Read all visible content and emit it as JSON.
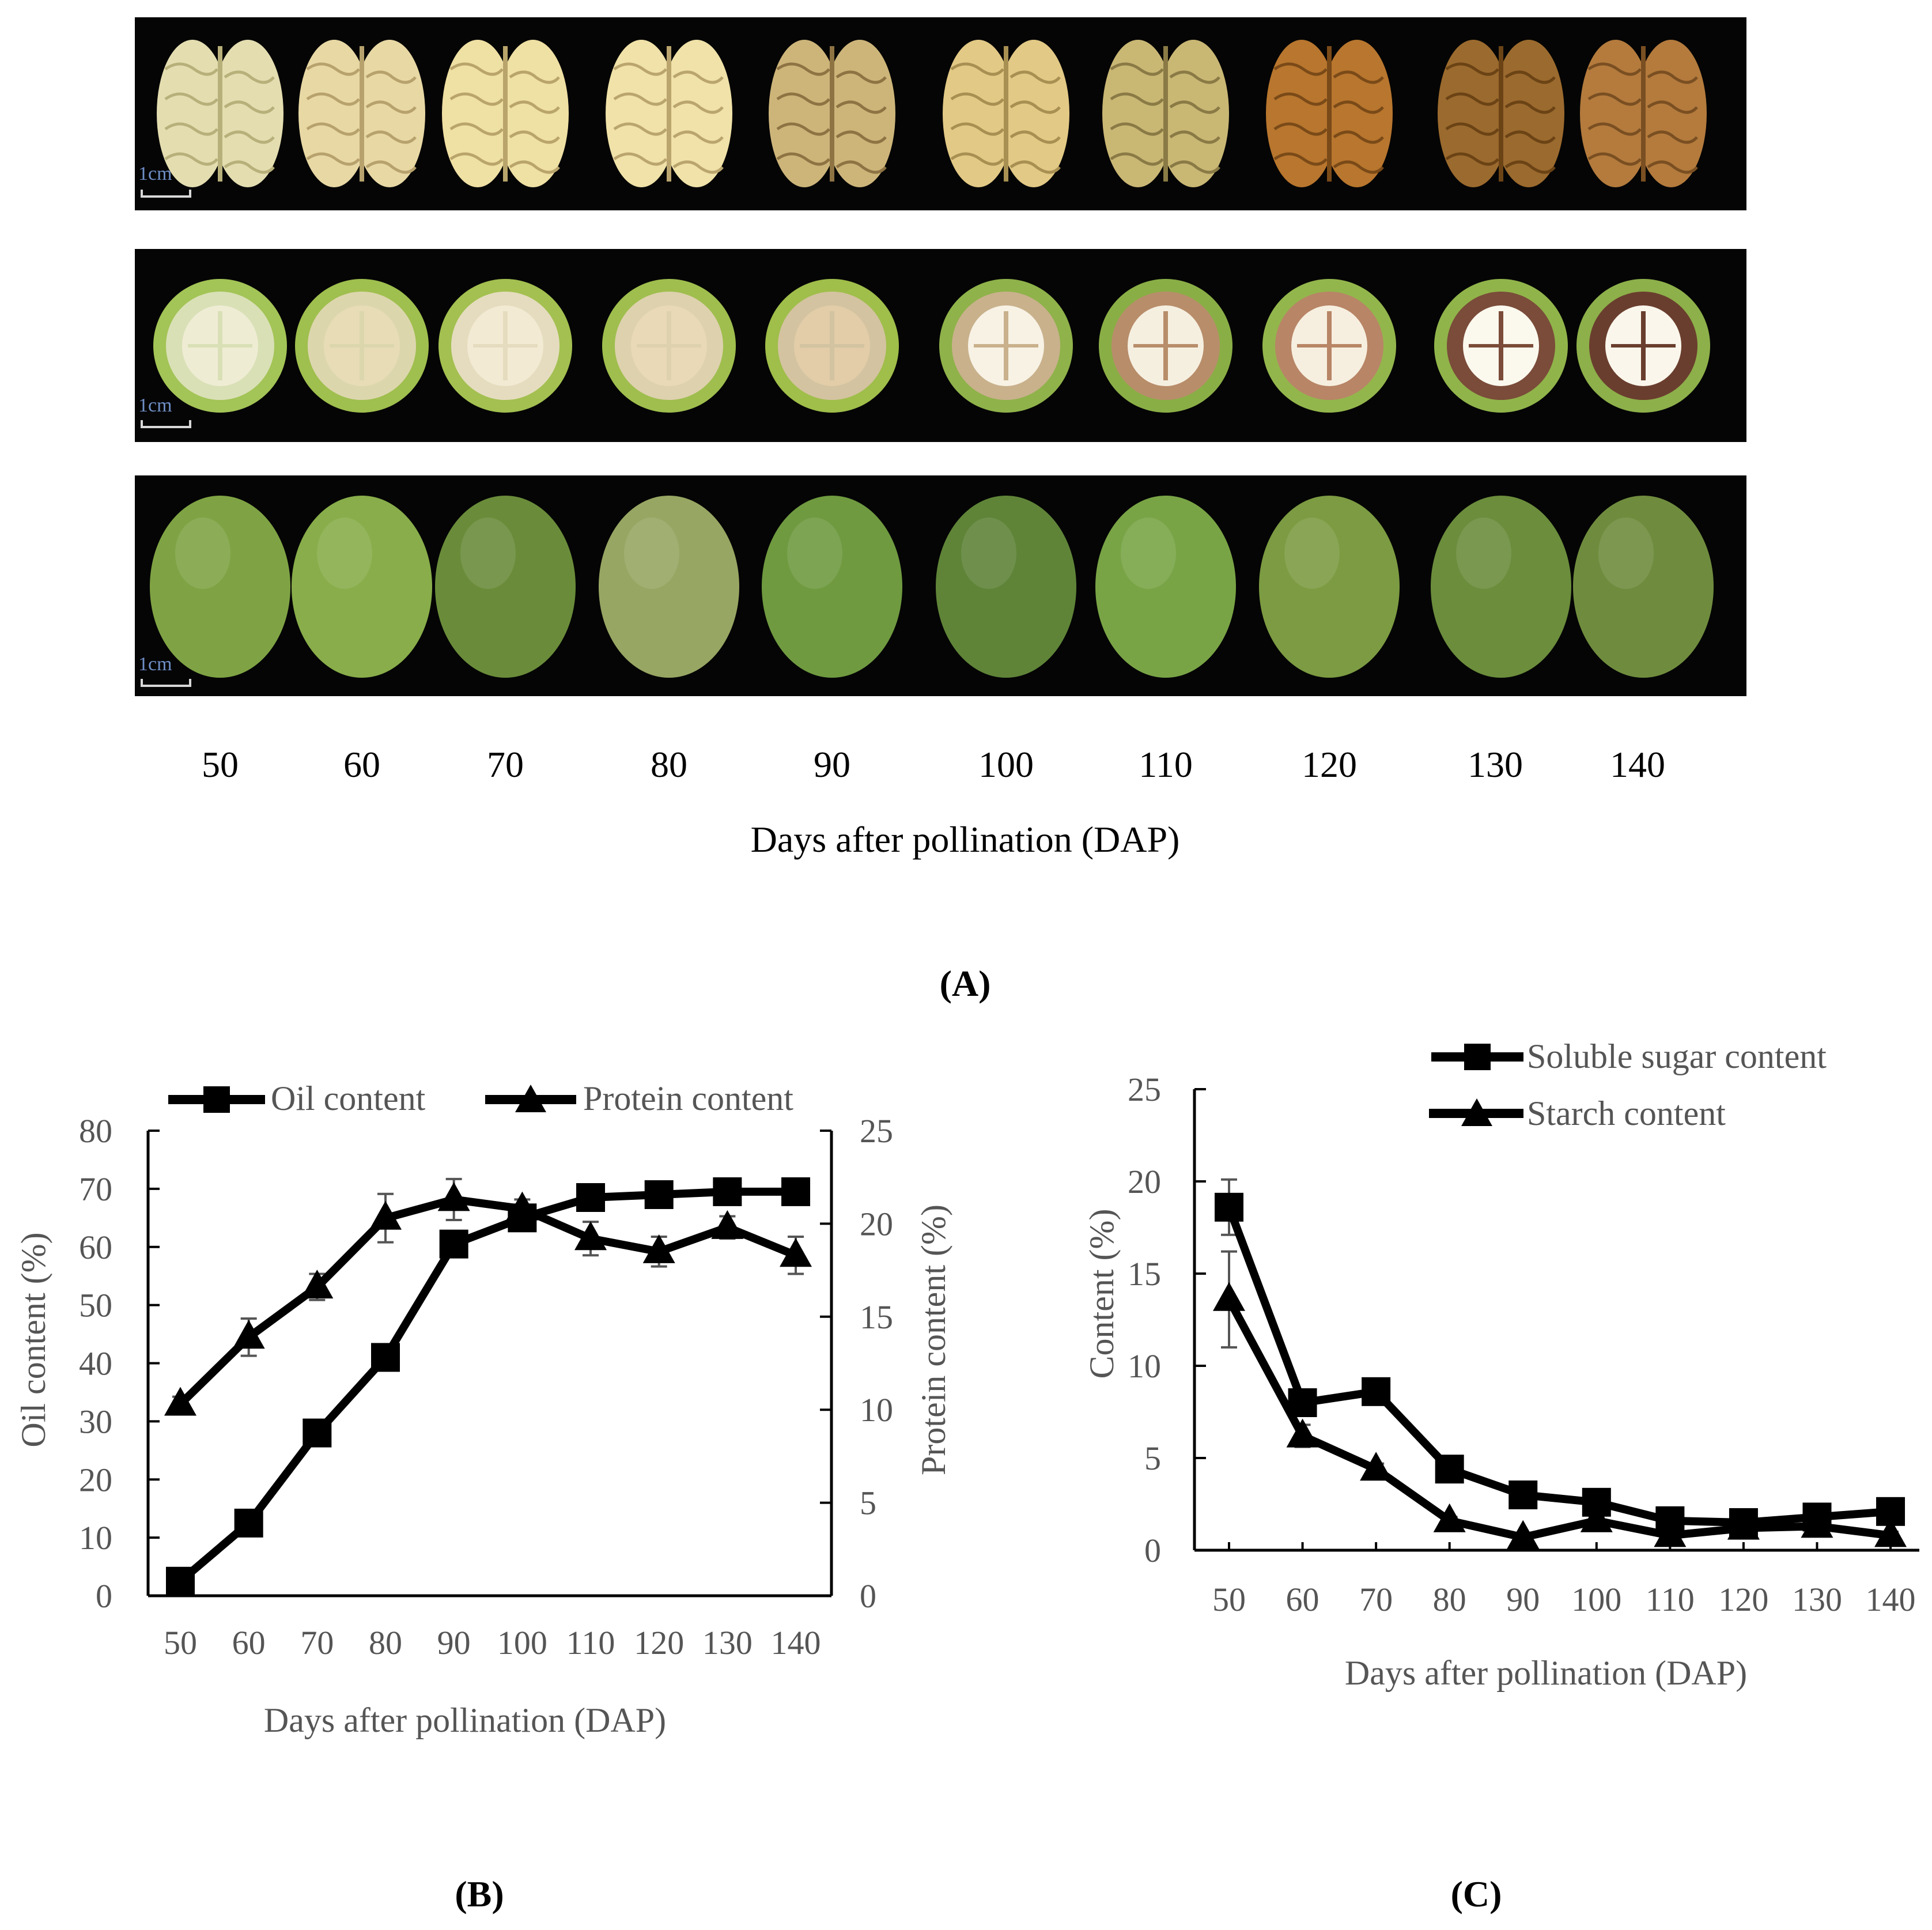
{
  "panel_a": {
    "label": "(A)",
    "rows": [
      "kernel",
      "cross-section",
      "whole-fruit"
    ],
    "scale_label": "1cm",
    "dap_labels": [
      "50",
      "60",
      "70",
      "80",
      "90",
      "100",
      "110",
      "120",
      "130",
      "140"
    ],
    "xlabel": "Days after pollination (DAP)",
    "colors": {
      "background": "#050505",
      "kernel_fill": [
        "#e3ddb0",
        "#e8d8a4",
        "#efe0a3",
        "#f0e2a8",
        "#cdb57a",
        "#e2c985",
        "#c9b774",
        "#b8762e",
        "#9b6a2e",
        "#b47b3d"
      ],
      "kernel_line": [
        "#b8b07a",
        "#b7a26d",
        "#b9a56b",
        "#baa56e",
        "#8e7343",
        "#a88f52",
        "#8a7a45",
        "#7a4a18",
        "#6b4315",
        "#7a4f22"
      ],
      "section_rind": [
        "#a3c456",
        "#9fbf4e",
        "#a3c050",
        "#9fbe4e",
        "#9fbe4a",
        "#8fb24a",
        "#8aae46",
        "#93b64c",
        "#90b44a",
        "#8db04a"
      ],
      "section_flesh": [
        "#d9e0b6",
        "#dcd6ad",
        "#e5dcbf",
        "#ded1ae",
        "#d3c3a0",
        "#c9b18c",
        "#b88d6a",
        "#b88566",
        "#7a4c39",
        "#6a3e2e"
      ],
      "section_core": [
        "#efecd4",
        "#e7dcb6",
        "#f2ead3",
        "#ead9b6",
        "#e2cda8",
        "#f7f2e4",
        "#f5efe0",
        "#f6efdf",
        "#fbf8ee",
        "#faf6ec"
      ],
      "fruit_fill": [
        "#7fa344",
        "#88ad4a",
        "#6a8c3a",
        "#97a662",
        "#6f9a40",
        "#5f8438",
        "#79a446",
        "#7c9b42",
        "#6b8d3c",
        "#6f8c3e"
      ]
    }
  },
  "panel_b": {
    "label": "(B)",
    "legend": [
      "Oil content",
      "Protein content"
    ],
    "chart_data": {
      "type": "line",
      "x": [
        50,
        60,
        70,
        80,
        90,
        100,
        110,
        120,
        130,
        140
      ],
      "xlabel": "Days after pollination (DAP)",
      "ylabel_left": "Oil content (%)",
      "ylabel_right": "Protein content (%)",
      "ylim_left": [
        0,
        80
      ],
      "ylim_right": [
        0,
        25
      ],
      "yticks_left": [
        0,
        10,
        20,
        30,
        40,
        50,
        60,
        70,
        80
      ],
      "yticks_right": [
        0,
        5,
        10,
        15,
        20,
        25
      ],
      "series": [
        {
          "name": "Oil content",
          "axis": "left",
          "marker": "square",
          "values": [
            2.5,
            12.5,
            28,
            41,
            60.5,
            65,
            68.5,
            69,
            69.5,
            69.5
          ],
          "error": [
            0.5,
            0.8,
            1.0,
            1.0,
            1.5,
            1.0,
            1.0,
            0.8,
            0.8,
            0.8
          ]
        },
        {
          "name": "Protein content",
          "axis": "right",
          "marker": "triangle",
          "values": [
            10.3,
            13.9,
            16.6,
            20.3,
            21.3,
            20.8,
            19.2,
            18.5,
            19.8,
            18.3
          ],
          "error": [
            0.4,
            1.0,
            0.7,
            1.3,
            1.1,
            0.5,
            0.9,
            0.8,
            0.6,
            1.0
          ]
        }
      ]
    }
  },
  "panel_c": {
    "label": "(C)",
    "legend": [
      "Soluble sugar content",
      "Starch content"
    ],
    "chart_data": {
      "type": "line",
      "x": [
        50,
        60,
        70,
        80,
        90,
        100,
        110,
        120,
        130,
        140
      ],
      "xlabel": "Days after pollination (DAP)",
      "ylabel": "Content (%)",
      "ylim": [
        0,
        25
      ],
      "yticks": [
        0,
        5,
        10,
        15,
        20,
        25
      ],
      "series": [
        {
          "name": "Soluble sugar content",
          "marker": "square",
          "values": [
            18.6,
            8.0,
            8.6,
            4.4,
            3.0,
            2.6,
            1.6,
            1.5,
            1.8,
            2.1
          ],
          "error": [
            1.5,
            0.4,
            0.4,
            0.3,
            0.3,
            0.3,
            0.2,
            0.2,
            0.2,
            0.2
          ]
        },
        {
          "name": "Starch content",
          "marker": "triangle",
          "values": [
            13.6,
            6.2,
            4.4,
            1.6,
            0.7,
            1.6,
            0.8,
            1.2,
            1.3,
            0.8
          ],
          "error": [
            2.6,
            0.6,
            0.3,
            0.2,
            0.2,
            0.2,
            0.2,
            0.2,
            0.2,
            0.2
          ]
        }
      ]
    }
  }
}
